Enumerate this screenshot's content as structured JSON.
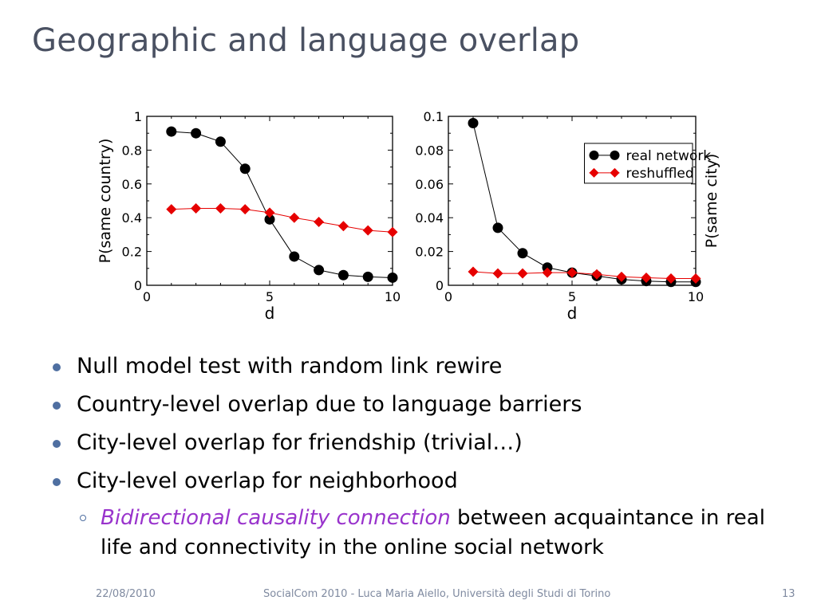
{
  "slide": {
    "title": "Geographic and language overlap",
    "bullets": [
      "Null model test with random link rewire",
      "Country-level overlap due to language barriers",
      "City-level overlap for friendship (trivial…)",
      "City-level overlap for neighborhood"
    ],
    "sub_bullet": {
      "emphasis": "Bidirectional causality connection",
      "rest": " between acquaintance in real life and connectivity in the online social network"
    },
    "footer": {
      "date": "22/08/2010",
      "center": "SocialCom 2010 - Luca Maria Aiello, Università degli Studi di Torino",
      "page": "13"
    },
    "colors": {
      "title": "#4a5162",
      "bullet_dot": "#4f6fa1",
      "emphasis": "#9933cc",
      "real_network": "#000000",
      "reshuffled": "#e60000"
    }
  },
  "chart_data": [
    {
      "type": "line",
      "xlabel": "d",
      "ylabel": "P(same country)",
      "xlim": [
        0,
        10
      ],
      "ylim": [
        0,
        1
      ],
      "xticks": [
        0,
        5,
        10
      ],
      "yticks": [
        0,
        0.2,
        0.4,
        0.6,
        0.8,
        1
      ],
      "ytick_labels": [
        "0",
        "0.2",
        "0.4",
        "0.6",
        "0.8",
        "1"
      ],
      "series": [
        {
          "name": "real network",
          "marker": "circle",
          "color": "#000000",
          "x": [
            1,
            2,
            3,
            4,
            5,
            6,
            7,
            8,
            9,
            10
          ],
          "y": [
            0.91,
            0.9,
            0.85,
            0.69,
            0.39,
            0.17,
            0.09,
            0.06,
            0.05,
            0.045
          ]
        },
        {
          "name": "reshuffled",
          "marker": "diamond",
          "color": "#e60000",
          "x": [
            1,
            2,
            3,
            4,
            5,
            6,
            7,
            8,
            9,
            10
          ],
          "y": [
            0.45,
            0.455,
            0.455,
            0.45,
            0.43,
            0.4,
            0.375,
            0.35,
            0.325,
            0.315
          ]
        }
      ]
    },
    {
      "type": "line",
      "xlabel": "d",
      "ylabel": "P(same city)",
      "xlim": [
        0,
        10
      ],
      "ylim": [
        0,
        0.1
      ],
      "xticks": [
        0,
        5,
        10
      ],
      "yticks": [
        0,
        0.02,
        0.04,
        0.06,
        0.08,
        0.1
      ],
      "ytick_labels": [
        "0",
        "0.02",
        "0.04",
        "0.06",
        "0.08",
        "0.1"
      ],
      "legend": "top-right",
      "series": [
        {
          "name": "real network",
          "marker": "circle",
          "color": "#000000",
          "x": [
            1,
            2,
            3,
            4,
            5,
            6,
            7,
            8,
            9,
            10
          ],
          "y": [
            0.096,
            0.034,
            0.019,
            0.0105,
            0.0075,
            0.0055,
            0.0035,
            0.0025,
            0.002,
            0.002
          ]
        },
        {
          "name": "reshuffled",
          "marker": "diamond",
          "color": "#e60000",
          "x": [
            1,
            2,
            3,
            4,
            5,
            6,
            7,
            8,
            9,
            10
          ],
          "y": [
            0.008,
            0.007,
            0.007,
            0.0075,
            0.0075,
            0.0065,
            0.005,
            0.0045,
            0.004,
            0.004
          ]
        }
      ]
    }
  ]
}
